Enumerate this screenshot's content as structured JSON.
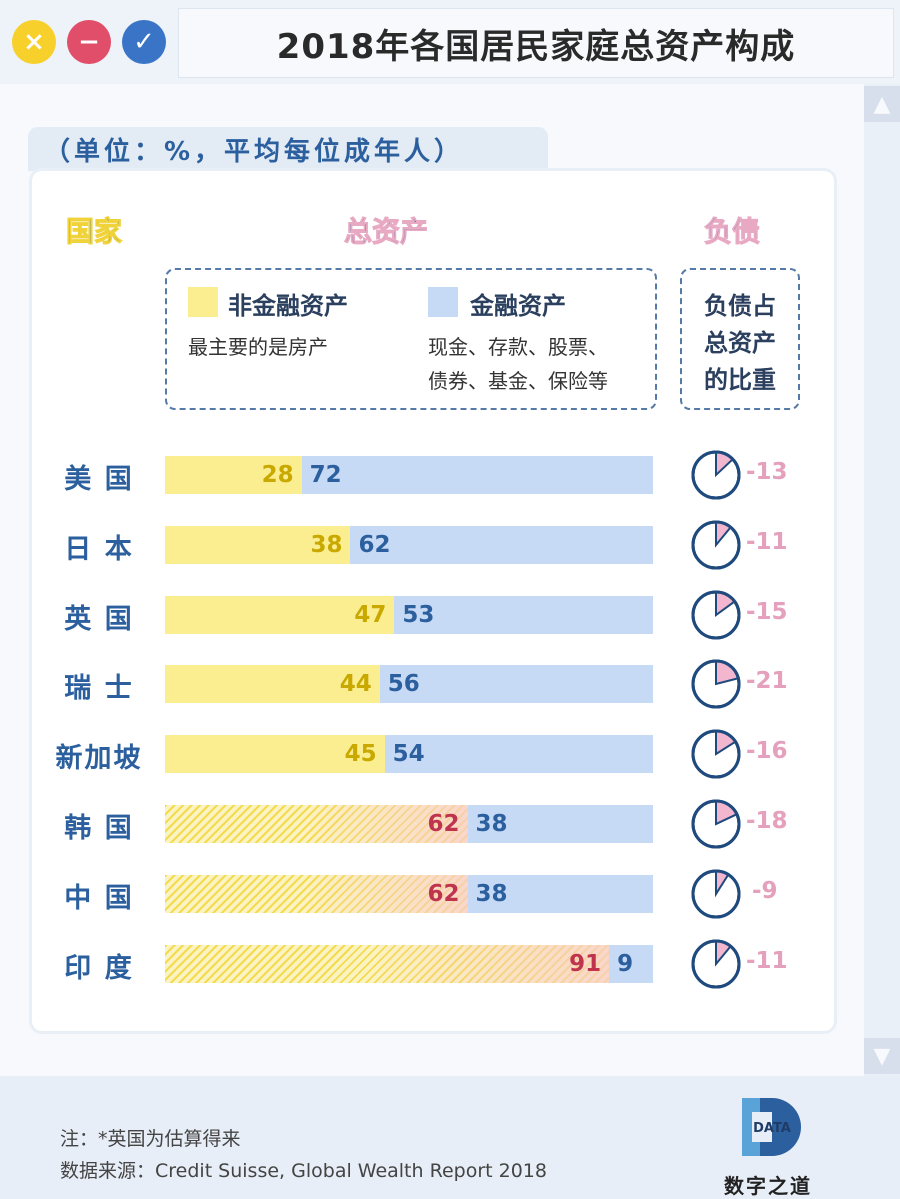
{
  "window": {
    "title": "2018年各国居民家庭总资产构成",
    "buttons": {
      "close": "×",
      "minimize": "−",
      "confirm": "✓"
    },
    "colors": {
      "close": "#f8d02c",
      "minimize": "#e14e6a",
      "confirm": "#3a74c7"
    }
  },
  "scrollbar": {
    "up": "▲",
    "down": "▼"
  },
  "unit_note": "（单位：%，平均每位成年人）",
  "headers": {
    "country": "国家",
    "total_assets": "总资产",
    "debt": "负债"
  },
  "legend": {
    "nonfinancial": {
      "label": "非金融资产",
      "desc": "最主要的是房产",
      "color": "#fbee90"
    },
    "financial": {
      "label": "金融资产",
      "desc_line1": "现金、存款、股票、",
      "desc_line2": "债券、基金、保险等",
      "color": "#c6d9f5"
    },
    "debt": {
      "line1": "负债占",
      "line2": "总资产",
      "line3": "的比重"
    }
  },
  "chart_data": {
    "type": "bar",
    "stacked": true,
    "orientation": "horizontal",
    "title": "2018年各国居民家庭总资产构成",
    "unit": "%",
    "categories": [
      "美 国",
      "日 本",
      "英 国",
      "瑞 士",
      "新加坡",
      "韩 国",
      "中 国",
      "印 度"
    ],
    "series": [
      {
        "name": "非金融资产",
        "values": [
          28,
          38,
          47,
          44,
          45,
          62,
          62,
          91
        ],
        "color": "#fbee90"
      },
      {
        "name": "金融资产",
        "values": [
          72,
          62,
          53,
          56,
          54,
          38,
          38,
          9
        ],
        "color": "#c6d9f5"
      }
    ],
    "hatched_nonfinancial": [
      false,
      false,
      false,
      false,
      false,
      true,
      true,
      true
    ],
    "debt_ratio": {
      "name": "负债占总资产的比重",
      "values": [
        -13,
        -11,
        -15,
        -21,
        -16,
        -18,
        -9,
        -11
      ],
      "color": "#e4a0bc"
    }
  },
  "footer": {
    "note": "注：*英国为估算得来",
    "source": "数据来源：Credit Suisse, Global Wealth Report 2018",
    "logo_text": "DATA",
    "brand": "数字之道"
  }
}
